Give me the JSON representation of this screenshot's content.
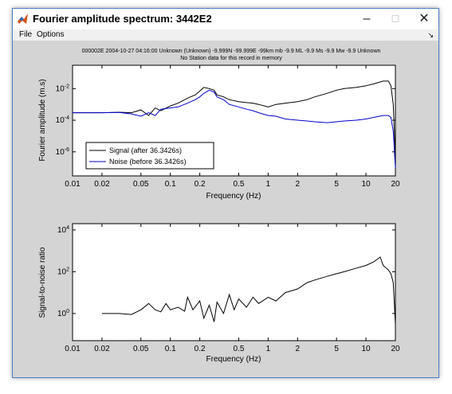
{
  "window": {
    "title": "Fourier amplitude spectrum: 3442E2",
    "minimize_glyph": "–",
    "maximize_glyph": "☐",
    "close_glyph": "✕",
    "app_icon": "matlab-icon"
  },
  "menubar": {
    "items": [
      "File",
      "Options"
    ],
    "dock_arrow": "↘"
  },
  "header": {
    "line1": "000002E 2004-10-27 04:16:00 Unknown (Unknown) -9.999N -99.999E -99km  mb -9.9 ML -9.9 Ms -9.9 Mw -9.9 Unknown",
    "line2": "No Station data for this record in memory"
  },
  "chart_data": [
    {
      "type": "line",
      "scale": "log-log",
      "xlabel": "Frequency (Hz)",
      "ylabel": "Fourier amplitude (m.s)",
      "xlim": [
        0.01,
        20
      ],
      "ylim": [
        3e-08,
        0.3
      ],
      "x_ticks": [
        "0.01",
        "0.02",
        "0.05",
        "0.1",
        "0.2",
        "0.5",
        "1",
        "2",
        "5",
        "10",
        "20"
      ],
      "x_tick_values": [
        0.01,
        0.02,
        0.05,
        0.1,
        0.2,
        0.5,
        1,
        2,
        5,
        10,
        20
      ],
      "y_ticks": [
        "10^-2",
        "10^-4",
        "10^-6"
      ],
      "y_tick_values": [
        0.01,
        0.0001,
        1e-06
      ],
      "legend_position": "lower-left",
      "series": [
        {
          "name": "Signal (after 36.3426s)",
          "color": "#000000",
          "x": [
            0.01,
            0.02,
            0.03,
            0.04,
            0.05,
            0.06,
            0.07,
            0.08,
            0.1,
            0.12,
            0.15,
            0.18,
            0.2,
            0.22,
            0.25,
            0.28,
            0.3,
            0.35,
            0.4,
            0.5,
            0.6,
            0.7,
            0.8,
            1.0,
            1.2,
            1.5,
            2.0,
            2.5,
            3.0,
            4.0,
            5.0,
            6.0,
            8.0,
            10.0,
            12.0,
            15.0,
            17.0,
            18.0,
            19.0,
            20.0
          ],
          "y": [
            0.0003,
            0.0003,
            0.00032,
            0.0003,
            0.00045,
            0.0002,
            0.0006,
            0.0004,
            0.0008,
            0.0012,
            0.0025,
            0.004,
            0.007,
            0.012,
            0.01,
            0.008,
            0.004,
            0.003,
            0.002,
            0.0015,
            0.0013,
            0.0012,
            0.001,
            0.0007,
            0.001,
            0.0012,
            0.0015,
            0.002,
            0.003,
            0.005,
            0.008,
            0.01,
            0.012,
            0.015,
            0.02,
            0.03,
            0.03,
            0.015,
            0.001,
            4e-07
          ]
        },
        {
          "name": "Noise (before 36.3426s)",
          "color": "#0000cc",
          "x": [
            0.01,
            0.02,
            0.03,
            0.04,
            0.05,
            0.06,
            0.07,
            0.08,
            0.1,
            0.12,
            0.15,
            0.18,
            0.2,
            0.22,
            0.25,
            0.28,
            0.3,
            0.35,
            0.4,
            0.5,
            0.6,
            0.7,
            0.8,
            1.0,
            1.2,
            1.5,
            2.0,
            2.5,
            3.0,
            4.0,
            5.0,
            6.0,
            8.0,
            10.0,
            12.0,
            15.0,
            17.0,
            18.0,
            19.0,
            20.0
          ],
          "y": [
            0.0003,
            0.0003,
            0.00031,
            0.00025,
            0.00018,
            0.0003,
            0.0002,
            0.0005,
            0.0006,
            0.0007,
            0.0012,
            0.002,
            0.003,
            0.005,
            0.008,
            0.006,
            0.003,
            0.002,
            0.001,
            0.0007,
            0.0005,
            0.0004,
            0.0003,
            0.0002,
            0.00018,
            0.00012,
            0.0001,
            9e-05,
            8e-05,
            7e-05,
            8e-05,
            9e-05,
            0.0001,
            0.00012,
            0.00015,
            0.0002,
            0.0002,
            0.00015,
            2e-05,
            1e-07
          ]
        }
      ]
    },
    {
      "type": "line",
      "scale": "log-log",
      "xlabel": "Frequency (Hz)",
      "ylabel": "Signal-to-noise ratio",
      "xlim": [
        0.01,
        20
      ],
      "ylim": [
        0.05,
        20000
      ],
      "x_ticks": [
        "0.01",
        "0.02",
        "0.05",
        "0.1",
        "0.2",
        "0.5",
        "1",
        "2",
        "5",
        "10",
        "20"
      ],
      "x_tick_values": [
        0.01,
        0.02,
        0.05,
        0.1,
        0.2,
        0.5,
        1,
        2,
        5,
        10,
        20
      ],
      "y_ticks": [
        "10^4",
        "10^2",
        "10^0"
      ],
      "y_tick_values": [
        10000,
        100,
        1
      ],
      "series": [
        {
          "name": "",
          "color": "#000000",
          "x": [
            0.02,
            0.03,
            0.04,
            0.05,
            0.06,
            0.07,
            0.08,
            0.09,
            0.1,
            0.12,
            0.14,
            0.15,
            0.17,
            0.2,
            0.22,
            0.25,
            0.28,
            0.3,
            0.35,
            0.4,
            0.45,
            0.5,
            0.6,
            0.7,
            0.8,
            1.0,
            1.2,
            1.5,
            2.0,
            2.5,
            3.0,
            4.0,
            5.0,
            6.0,
            8.0,
            10.0,
            12.0,
            14.0,
            15.0,
            17.0,
            18.0,
            19.0,
            20.0
          ],
          "y": [
            1.0,
            1.0,
            0.9,
            1.5,
            3.0,
            1.5,
            1.2,
            3.0,
            1.5,
            2.0,
            1.3,
            6.0,
            1.5,
            4.0,
            0.6,
            2.5,
            0.4,
            3.5,
            1.0,
            8.0,
            1.5,
            5.0,
            2.0,
            6.0,
            3.0,
            6.0,
            4.0,
            10.0,
            15.0,
            30.0,
            40.0,
            60.0,
            80.0,
            100.0,
            150.0,
            200.0,
            300.0,
            500.0,
            200.0,
            120.0,
            80.0,
            30.0,
            0.3
          ]
        }
      ]
    }
  ]
}
